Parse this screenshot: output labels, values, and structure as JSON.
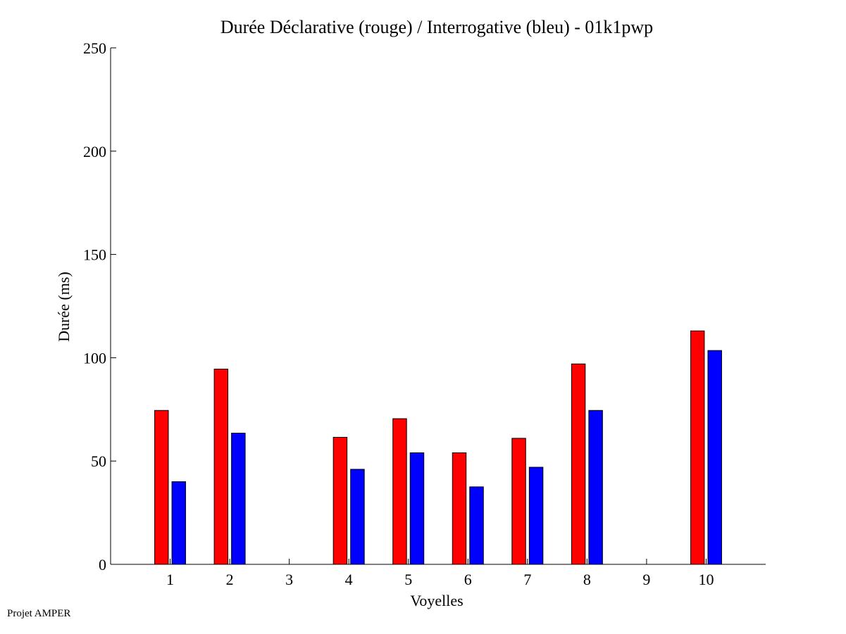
{
  "chart_data": {
    "type": "bar",
    "title": "Durée Déclarative (rouge) / Interrogative (bleu) - 01k1pwp",
    "xlabel": "Voyelles",
    "ylabel": "Durée (ms)",
    "ylim": [
      0,
      250
    ],
    "yticks": [
      0,
      50,
      100,
      150,
      200,
      250
    ],
    "categories": [
      "1",
      "2",
      "3",
      "4",
      "5",
      "6",
      "7",
      "8",
      "9",
      "10"
    ],
    "series": [
      {
        "name": "Déclarative",
        "color": "#ff0000",
        "values": [
          74.5,
          94.5,
          null,
          61.5,
          70.5,
          54,
          61,
          97,
          null,
          113
        ]
      },
      {
        "name": "Interrogative",
        "color": "#0000ff",
        "values": [
          40,
          63.5,
          null,
          46,
          54,
          37.5,
          47,
          74.5,
          null,
          103.5
        ]
      }
    ],
    "xlim": [
      0,
      11
    ],
    "grid": false
  },
  "footer": {
    "note": "Projet AMPER"
  }
}
